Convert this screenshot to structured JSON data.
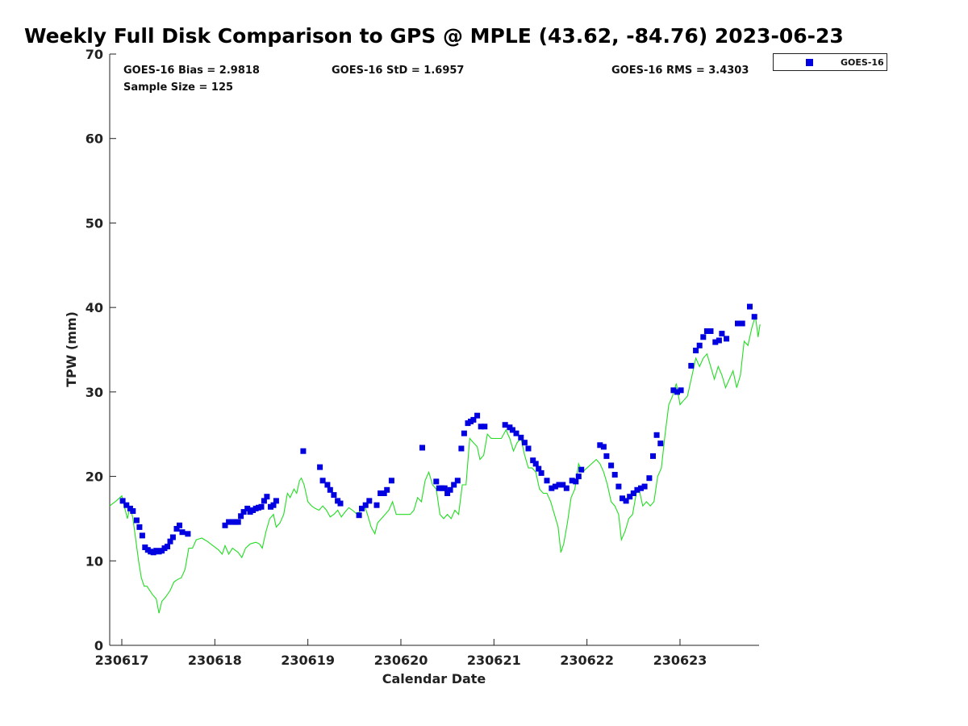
{
  "chart_data": {
    "type": "scatter",
    "title": "Weekly Full Disk Comparison to GPS @ MPLE (43.62, -84.76) 2023-06-23",
    "xlabel": "Calendar Date",
    "ylabel": "TPW (mm)",
    "xlim": [
      -0.13,
      6.85
    ],
    "ylim": [
      0,
      70
    ],
    "yticks": [
      0,
      10,
      20,
      30,
      40,
      50,
      60,
      70
    ],
    "xticks": [
      {
        "value": 0,
        "label": "230617"
      },
      {
        "value": 1,
        "label": "230618"
      },
      {
        "value": 2,
        "label": "230619"
      },
      {
        "value": 3,
        "label": "230620"
      },
      {
        "value": 4,
        "label": "230621"
      },
      {
        "value": 5,
        "label": "230622"
      },
      {
        "value": 6,
        "label": "230623"
      }
    ],
    "stats": {
      "bias": "GOES-16 Bias = 2.9818",
      "std": "GOES-16 StD = 1.6957",
      "rms": "GOES-16 RMS = 3.4303",
      "sample": "Sample Size = 125"
    },
    "legend": {
      "label": "GOES-16",
      "position": "top-right"
    },
    "series": [
      {
        "name": "GOES-16",
        "kind": "scatter",
        "color": "#0000e0",
        "points": [
          [
            0.01,
            17.1
          ],
          [
            0.05,
            16.6
          ],
          [
            0.09,
            16.2
          ],
          [
            0.12,
            15.9
          ],
          [
            0.16,
            14.8
          ],
          [
            0.19,
            14.0
          ],
          [
            0.22,
            13.0
          ],
          [
            0.25,
            11.6
          ],
          [
            0.28,
            11.3
          ],
          [
            0.31,
            11.1
          ],
          [
            0.34,
            11.0
          ],
          [
            0.37,
            11.2
          ],
          [
            0.4,
            11.1
          ],
          [
            0.43,
            11.2
          ],
          [
            0.46,
            11.5
          ],
          [
            0.49,
            11.7
          ],
          [
            0.52,
            12.3
          ],
          [
            0.55,
            12.8
          ],
          [
            0.59,
            13.8
          ],
          [
            0.62,
            14.2
          ],
          [
            0.65,
            13.4
          ],
          [
            0.71,
            13.2
          ],
          [
            1.11,
            14.2
          ],
          [
            1.15,
            14.6
          ],
          [
            1.19,
            14.6
          ],
          [
            1.22,
            14.6
          ],
          [
            1.25,
            14.6
          ],
          [
            1.28,
            15.3
          ],
          [
            1.31,
            15.8
          ],
          [
            1.35,
            16.2
          ],
          [
            1.38,
            15.8
          ],
          [
            1.41,
            16.0
          ],
          [
            1.44,
            16.2
          ],
          [
            1.47,
            16.3
          ],
          [
            1.5,
            16.4
          ],
          [
            1.53,
            17.1
          ],
          [
            1.56,
            17.6
          ],
          [
            1.6,
            16.4
          ],
          [
            1.63,
            16.6
          ],
          [
            1.66,
            17.1
          ],
          [
            1.95,
            23.0
          ],
          [
            2.13,
            21.1
          ],
          [
            2.16,
            19.5
          ],
          [
            2.21,
            19.0
          ],
          [
            2.24,
            18.4
          ],
          [
            2.28,
            17.8
          ],
          [
            2.32,
            17.1
          ],
          [
            2.35,
            16.8
          ],
          [
            2.55,
            15.4
          ],
          [
            2.58,
            16.2
          ],
          [
            2.62,
            16.6
          ],
          [
            2.66,
            17.1
          ],
          [
            2.74,
            16.6
          ],
          [
            2.78,
            18.0
          ],
          [
            2.82,
            18.0
          ],
          [
            2.85,
            18.4
          ],
          [
            2.9,
            19.5
          ],
          [
            3.23,
            23.4
          ],
          [
            3.38,
            19.4
          ],
          [
            3.41,
            18.6
          ],
          [
            3.44,
            18.6
          ],
          [
            3.47,
            18.6
          ],
          [
            3.5,
            18.0
          ],
          [
            3.53,
            18.4
          ],
          [
            3.57,
            19.0
          ],
          [
            3.61,
            19.5
          ],
          [
            3.65,
            23.3
          ],
          [
            3.68,
            25.1
          ],
          [
            3.72,
            26.3
          ],
          [
            3.75,
            26.5
          ],
          [
            3.78,
            26.7
          ],
          [
            3.82,
            27.2
          ],
          [
            3.86,
            25.9
          ],
          [
            3.9,
            25.9
          ],
          [
            4.12,
            26.1
          ],
          [
            4.17,
            25.8
          ],
          [
            4.2,
            25.5
          ],
          [
            4.24,
            25.1
          ],
          [
            4.29,
            24.6
          ],
          [
            4.33,
            24.0
          ],
          [
            4.37,
            23.3
          ],
          [
            4.42,
            21.9
          ],
          [
            4.45,
            21.5
          ],
          [
            4.48,
            20.9
          ],
          [
            4.51,
            20.4
          ],
          [
            4.57,
            19.5
          ],
          [
            4.62,
            18.6
          ],
          [
            4.66,
            18.8
          ],
          [
            4.7,
            19.0
          ],
          [
            4.74,
            19.0
          ],
          [
            4.78,
            18.6
          ],
          [
            4.84,
            19.5
          ],
          [
            4.88,
            19.4
          ],
          [
            4.91,
            20.0
          ],
          [
            4.94,
            20.8
          ],
          [
            5.14,
            23.7
          ],
          [
            5.18,
            23.5
          ],
          [
            5.21,
            22.4
          ],
          [
            5.26,
            21.3
          ],
          [
            5.3,
            20.2
          ],
          [
            5.34,
            18.8
          ],
          [
            5.38,
            17.4
          ],
          [
            5.42,
            17.1
          ],
          [
            5.46,
            17.6
          ],
          [
            5.5,
            18.0
          ],
          [
            5.54,
            18.4
          ],
          [
            5.58,
            18.6
          ],
          [
            5.62,
            18.8
          ],
          [
            5.67,
            19.8
          ],
          [
            5.71,
            22.4
          ],
          [
            5.75,
            24.9
          ],
          [
            5.79,
            23.9
          ],
          [
            5.93,
            30.2
          ],
          [
            5.97,
            30.0
          ],
          [
            6.01,
            30.2
          ],
          [
            6.12,
            33.1
          ],
          [
            6.17,
            34.9
          ],
          [
            6.21,
            35.5
          ],
          [
            6.25,
            36.5
          ],
          [
            6.29,
            37.2
          ],
          [
            6.33,
            37.2
          ],
          [
            6.38,
            35.9
          ],
          [
            6.42,
            36.1
          ],
          [
            6.45,
            36.9
          ],
          [
            6.5,
            36.3
          ],
          [
            6.62,
            38.1
          ],
          [
            6.67,
            38.1
          ],
          [
            6.75,
            40.1
          ],
          [
            6.8,
            38.9
          ]
        ]
      },
      {
        "name": "GPS",
        "kind": "line",
        "color": "#22dd22",
        "points": [
          [
            -0.13,
            16.5
          ],
          [
            -0.06,
            17.1
          ],
          [
            0.0,
            17.7
          ],
          [
            0.03,
            16.3
          ],
          [
            0.06,
            15.0
          ],
          [
            0.09,
            16.5
          ],
          [
            0.12,
            15.0
          ],
          [
            0.15,
            12.5
          ],
          [
            0.18,
            10.0
          ],
          [
            0.21,
            8.0
          ],
          [
            0.24,
            7.0
          ],
          [
            0.27,
            7.0
          ],
          [
            0.3,
            6.5
          ],
          [
            0.33,
            6.0
          ],
          [
            0.37,
            5.5
          ],
          [
            0.4,
            3.8
          ],
          [
            0.43,
            5.2
          ],
          [
            0.47,
            5.7
          ],
          [
            0.52,
            6.5
          ],
          [
            0.56,
            7.5
          ],
          [
            0.6,
            7.8
          ],
          [
            0.64,
            8.0
          ],
          [
            0.68,
            9.0
          ],
          [
            0.72,
            11.5
          ],
          [
            0.76,
            11.5
          ],
          [
            0.8,
            12.5
          ],
          [
            0.86,
            12.7
          ],
          [
            0.92,
            12.3
          ],
          [
            0.98,
            11.8
          ],
          [
            1.04,
            11.3
          ],
          [
            1.08,
            10.8
          ],
          [
            1.11,
            11.8
          ],
          [
            1.15,
            10.8
          ],
          [
            1.19,
            11.5
          ],
          [
            1.25,
            11.0
          ],
          [
            1.29,
            10.4
          ],
          [
            1.33,
            11.5
          ],
          [
            1.38,
            12.0
          ],
          [
            1.44,
            12.2
          ],
          [
            1.48,
            12.0
          ],
          [
            1.51,
            11.5
          ],
          [
            1.55,
            13.5
          ],
          [
            1.59,
            15.0
          ],
          [
            1.63,
            15.5
          ],
          [
            1.66,
            14.0
          ],
          [
            1.7,
            14.5
          ],
          [
            1.74,
            15.5
          ],
          [
            1.78,
            18.0
          ],
          [
            1.81,
            17.5
          ],
          [
            1.85,
            18.5
          ],
          [
            1.88,
            18.0
          ],
          [
            1.91,
            19.5
          ],
          [
            1.93,
            19.8
          ],
          [
            1.96,
            19.0
          ],
          [
            2.0,
            17.0
          ],
          [
            2.04,
            16.5
          ],
          [
            2.08,
            16.2
          ],
          [
            2.12,
            16.0
          ],
          [
            2.16,
            16.5
          ],
          [
            2.2,
            16.0
          ],
          [
            2.24,
            15.2
          ],
          [
            2.28,
            15.5
          ],
          [
            2.32,
            16.0
          ],
          [
            2.36,
            15.2
          ],
          [
            2.4,
            15.8
          ],
          [
            2.44,
            16.3
          ],
          [
            2.48,
            16.0
          ],
          [
            2.53,
            15.5
          ],
          [
            2.57,
            16.0
          ],
          [
            2.61,
            16.5
          ],
          [
            2.64,
            15.5
          ],
          [
            2.68,
            14.0
          ],
          [
            2.72,
            13.2
          ],
          [
            2.75,
            14.5
          ],
          [
            2.79,
            15.0
          ],
          [
            2.83,
            15.5
          ],
          [
            2.87,
            16.0
          ],
          [
            2.91,
            17.0
          ],
          [
            2.95,
            15.5
          ],
          [
            3.0,
            15.5
          ],
          [
            3.05,
            15.5
          ],
          [
            3.1,
            15.5
          ],
          [
            3.14,
            16.0
          ],
          [
            3.18,
            17.5
          ],
          [
            3.22,
            17.0
          ],
          [
            3.26,
            19.5
          ],
          [
            3.3,
            20.5
          ],
          [
            3.34,
            19.0
          ],
          [
            3.38,
            18.5
          ],
          [
            3.42,
            15.5
          ],
          [
            3.46,
            15.0
          ],
          [
            3.5,
            15.5
          ],
          [
            3.54,
            15.0
          ],
          [
            3.58,
            16.0
          ],
          [
            3.62,
            15.5
          ],
          [
            3.66,
            19.0
          ],
          [
            3.7,
            19.0
          ],
          [
            3.74,
            24.5
          ],
          [
            3.78,
            24.0
          ],
          [
            3.82,
            23.5
          ],
          [
            3.85,
            22.0
          ],
          [
            3.89,
            22.5
          ],
          [
            3.93,
            25.0
          ],
          [
            3.97,
            24.5
          ],
          [
            4.02,
            24.5
          ],
          [
            4.08,
            24.5
          ],
          [
            4.13,
            25.5
          ],
          [
            4.17,
            24.5
          ],
          [
            4.21,
            23.0
          ],
          [
            4.25,
            24.0
          ],
          [
            4.29,
            24.5
          ],
          [
            4.33,
            22.5
          ],
          [
            4.37,
            21.0
          ],
          [
            4.41,
            21.0
          ],
          [
            4.45,
            20.5
          ],
          [
            4.49,
            18.5
          ],
          [
            4.53,
            18.0
          ],
          [
            4.57,
            18.0
          ],
          [
            4.61,
            17.0
          ],
          [
            4.65,
            15.5
          ],
          [
            4.69,
            14.0
          ],
          [
            4.72,
            11.0
          ],
          [
            4.75,
            12.0
          ],
          [
            4.79,
            14.5
          ],
          [
            4.83,
            17.5
          ],
          [
            4.87,
            18.5
          ],
          [
            4.91,
            21.5
          ],
          [
            4.95,
            20.5
          ],
          [
            5.0,
            21.0
          ],
          [
            5.05,
            21.5
          ],
          [
            5.1,
            22.0
          ],
          [
            5.14,
            21.5
          ],
          [
            5.18,
            20.5
          ],
          [
            5.22,
            19.0
          ],
          [
            5.26,
            17.0
          ],
          [
            5.3,
            16.5
          ],
          [
            5.34,
            15.5
          ],
          [
            5.37,
            12.5
          ],
          [
            5.41,
            13.5
          ],
          [
            5.45,
            15.0
          ],
          [
            5.49,
            15.5
          ],
          [
            5.53,
            18.0
          ],
          [
            5.56,
            18.5
          ],
          [
            5.6,
            16.5
          ],
          [
            5.64,
            17.0
          ],
          [
            5.68,
            16.5
          ],
          [
            5.72,
            17.0
          ],
          [
            5.76,
            20.0
          ],
          [
            5.8,
            21.0
          ],
          [
            5.84,
            25.0
          ],
          [
            5.88,
            28.5
          ],
          [
            5.92,
            29.5
          ],
          [
            5.96,
            31.0
          ],
          [
            6.0,
            28.5
          ],
          [
            6.04,
            29.0
          ],
          [
            6.08,
            29.5
          ],
          [
            6.13,
            32.0
          ],
          [
            6.17,
            34.0
          ],
          [
            6.21,
            33.0
          ],
          [
            6.25,
            34.0
          ],
          [
            6.29,
            34.5
          ],
          [
            6.33,
            33.0
          ],
          [
            6.37,
            31.5
          ],
          [
            6.41,
            33.0
          ],
          [
            6.45,
            32.0
          ],
          [
            6.49,
            30.5
          ],
          [
            6.53,
            31.5
          ],
          [
            6.57,
            32.5
          ],
          [
            6.61,
            30.5
          ],
          [
            6.65,
            32.0
          ],
          [
            6.69,
            36.0
          ],
          [
            6.73,
            35.5
          ],
          [
            6.77,
            37.5
          ],
          [
            6.81,
            39.0
          ],
          [
            6.84,
            36.5
          ],
          [
            6.86,
            38.0
          ]
        ]
      }
    ]
  }
}
